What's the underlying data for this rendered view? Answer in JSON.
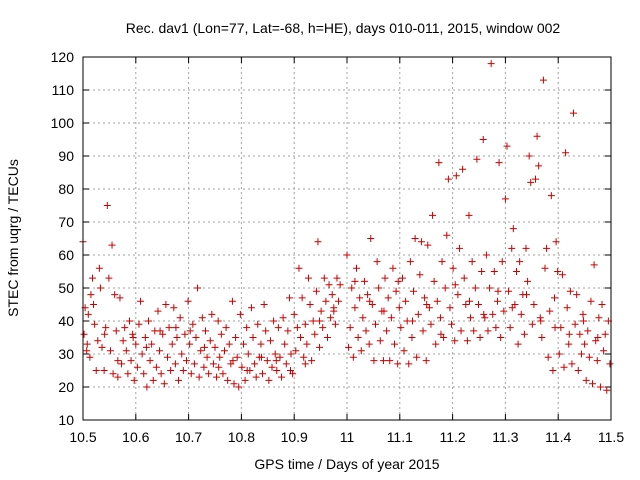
{
  "chart_data": {
    "type": "scatter",
    "title": "Rec. dav1 (Lon=77, Lat=-68, h=HE), days 010-011, 2015, window 002",
    "xlabel": "GPS time / Days of year 2015",
    "ylabel": "STEC from uqrg / TECUs",
    "xlim": [
      10.5,
      11.5
    ],
    "ylim": [
      10,
      120
    ],
    "xticks": [
      10.5,
      10.6,
      10.7,
      10.8,
      10.9,
      11,
      11.1,
      11.2,
      11.3,
      11.4,
      11.5
    ],
    "xtick_labels": [
      "10.5",
      "10.6",
      "10.7",
      "10.8",
      "10.9",
      "11",
      "11.1",
      "11.2",
      "11.3",
      "11.4",
      "11.5"
    ],
    "yticks": [
      10,
      20,
      30,
      40,
      50,
      60,
      70,
      80,
      90,
      100,
      110,
      120
    ],
    "ytick_labels": [
      "10",
      "20",
      "30",
      "40",
      "50",
      "60",
      "70",
      "80",
      "90",
      "100",
      "110",
      "120"
    ],
    "grid": true,
    "marker": "+",
    "color": "#cc0000",
    "legend": "none",
    "points": [
      [
        10.5,
        64
      ],
      [
        10.502,
        36
      ],
      [
        10.504,
        44
      ],
      [
        10.507,
        31
      ],
      [
        10.51,
        42
      ],
      [
        10.513,
        29
      ],
      [
        10.515,
        48
      ],
      [
        10.518,
        53
      ],
      [
        10.522,
        39
      ],
      [
        10.525,
        25
      ],
      [
        10.528,
        34
      ],
      [
        10.531,
        56
      ],
      [
        10.533,
        50
      ],
      [
        10.536,
        32
      ],
      [
        10.54,
        25
      ],
      [
        10.543,
        38
      ],
      [
        10.546,
        75
      ],
      [
        10.549,
        53
      ],
      [
        10.552,
        31
      ],
      [
        10.555,
        63
      ],
      [
        10.557,
        24
      ],
      [
        10.56,
        48
      ],
      [
        10.563,
        37
      ],
      [
        10.566,
        23
      ],
      [
        10.57,
        47
      ],
      [
        10.573,
        27
      ],
      [
        10.576,
        34
      ],
      [
        10.579,
        38
      ],
      [
        10.582,
        31
      ],
      [
        10.585,
        24
      ],
      [
        10.588,
        40
      ],
      [
        10.591,
        28
      ],
      [
        10.594,
        36
      ],
      [
        10.597,
        22
      ],
      [
        10.6,
        33
      ],
      [
        10.603,
        26
      ],
      [
        10.606,
        39
      ],
      [
        10.609,
        46
      ],
      [
        10.612,
        30
      ],
      [
        10.615,
        24
      ],
      [
        10.618,
        35
      ],
      [
        10.621,
        20
      ],
      [
        10.624,
        40
      ],
      [
        10.627,
        28
      ],
      [
        10.63,
        33
      ],
      [
        10.633,
        22
      ],
      [
        10.636,
        37
      ],
      [
        10.639,
        26
      ],
      [
        10.642,
        43
      ],
      [
        10.645,
        31
      ],
      [
        10.648,
        24
      ],
      [
        10.651,
        36
      ],
      [
        10.654,
        21
      ],
      [
        10.657,
        45
      ],
      [
        10.66,
        29
      ],
      [
        10.663,
        38
      ],
      [
        10.666,
        25
      ],
      [
        10.669,
        33
      ],
      [
        10.672,
        44
      ],
      [
        10.675,
        27
      ],
      [
        10.678,
        35
      ],
      [
        10.681,
        22
      ],
      [
        10.684,
        41
      ],
      [
        10.687,
        30
      ],
      [
        10.69,
        25
      ],
      [
        10.693,
        36
      ],
      [
        10.696,
        28
      ],
      [
        10.699,
        46
      ],
      [
        10.702,
        33
      ],
      [
        10.705,
        24
      ],
      [
        10.708,
        39
      ],
      [
        10.711,
        27
      ],
      [
        10.714,
        35
      ],
      [
        10.717,
        50
      ],
      [
        10.72,
        23
      ],
      [
        10.723,
        31
      ],
      [
        10.726,
        41
      ],
      [
        10.729,
        26
      ],
      [
        10.732,
        37
      ],
      [
        10.735,
        29
      ],
      [
        10.738,
        24
      ],
      [
        10.741,
        34
      ],
      [
        10.744,
        42
      ],
      [
        10.747,
        27
      ],
      [
        10.75,
        32
      ],
      [
        10.753,
        23
      ],
      [
        10.756,
        40
      ],
      [
        10.759,
        29
      ],
      [
        10.762,
        36
      ],
      [
        10.765,
        24
      ],
      [
        10.768,
        31
      ],
      [
        10.771,
        38
      ],
      [
        10.774,
        22
      ],
      [
        10.777,
        33
      ],
      [
        10.78,
        27
      ],
      [
        10.783,
        46
      ],
      [
        10.786,
        21
      ],
      [
        10.789,
        35
      ],
      [
        10.792,
        29
      ],
      [
        10.795,
        20
      ],
      [
        10.798,
        42
      ],
      [
        10.801,
        26
      ],
      [
        10.804,
        33
      ],
      [
        10.807,
        22
      ],
      [
        10.81,
        38
      ],
      [
        10.813,
        30
      ],
      [
        10.816,
        25
      ],
      [
        10.819,
        44
      ],
      [
        10.822,
        35
      ],
      [
        10.825,
        27
      ],
      [
        10.828,
        23
      ],
      [
        10.831,
        39
      ],
      [
        10.834,
        29
      ],
      [
        10.837,
        33
      ],
      [
        10.84,
        24
      ],
      [
        10.843,
        45
      ],
      [
        10.846,
        37
      ],
      [
        10.849,
        28
      ],
      [
        10.852,
        22
      ],
      [
        10.855,
        34
      ],
      [
        10.858,
        26
      ],
      [
        10.861,
        40
      ],
      [
        10.864,
        30
      ],
      [
        10.867,
        25
      ],
      [
        10.87,
        38
      ],
      [
        10.873,
        29
      ],
      [
        10.876,
        23
      ],
      [
        10.879,
        41
      ],
      [
        10.882,
        33
      ],
      [
        10.885,
        27
      ],
      [
        10.888,
        37
      ],
      [
        10.891,
        47
      ],
      [
        10.894,
        30
      ],
      [
        10.897,
        24
      ],
      [
        10.9,
        42
      ],
      [
        10.903,
        31
      ],
      [
        10.906,
        38
      ],
      [
        10.909,
        56
      ],
      [
        10.912,
        35
      ],
      [
        10.915,
        47
      ],
      [
        10.918,
        29
      ],
      [
        10.921,
        39
      ],
      [
        10.924,
        33
      ],
      [
        10.927,
        53
      ],
      [
        10.93,
        45
      ],
      [
        10.933,
        28
      ],
      [
        10.936,
        40
      ],
      [
        10.939,
        36
      ],
      [
        10.942,
        49
      ],
      [
        10.945,
        64
      ],
      [
        10.948,
        32
      ],
      [
        10.951,
        43
      ],
      [
        10.954,
        38
      ],
      [
        10.957,
        53
      ],
      [
        10.96,
        46
      ],
      [
        10.963,
        35
      ],
      [
        10.966,
        51
      ],
      [
        10.969,
        41
      ],
      [
        10.972,
        48
      ],
      [
        10.975,
        43
      ],
      [
        10.978,
        39
      ],
      [
        10.981,
        53
      ],
      [
        10.984,
        46
      ],
      [
        10.987,
        51
      ],
      [
        11.0,
        60
      ],
      [
        11.003,
        32
      ],
      [
        11.006,
        38
      ],
      [
        11.009,
        50
      ],
      [
        11.012,
        29
      ],
      [
        11.015,
        44
      ],
      [
        11.018,
        56
      ],
      [
        11.021,
        35
      ],
      [
        11.024,
        47
      ],
      [
        11.027,
        31
      ],
      [
        11.03,
        41
      ],
      [
        11.033,
        52
      ],
      [
        11.036,
        37
      ],
      [
        11.039,
        48
      ],
      [
        11.042,
        33
      ],
      [
        11.045,
        65
      ],
      [
        11.048,
        45
      ],
      [
        11.051,
        28
      ],
      [
        11.054,
        39
      ],
      [
        11.057,
        58
      ],
      [
        11.06,
        50
      ],
      [
        11.063,
        34
      ],
      [
        11.066,
        43
      ],
      [
        11.069,
        28
      ],
      [
        11.072,
        53
      ],
      [
        11.075,
        37
      ],
      [
        11.078,
        47
      ],
      [
        11.081,
        28
      ],
      [
        11.084,
        41
      ],
      [
        11.087,
        56
      ],
      [
        11.09,
        33
      ],
      [
        11.093,
        49
      ],
      [
        11.096,
        27
      ],
      [
        11.099,
        44
      ],
      [
        11.102,
        38
      ],
      [
        11.105,
        53
      ],
      [
        11.108,
        31
      ],
      [
        11.111,
        46
      ],
      [
        11.114,
        40
      ],
      [
        11.117,
        27
      ],
      [
        11.12,
        58
      ],
      [
        11.123,
        35
      ],
      [
        11.126,
        49
      ],
      [
        11.129,
        65
      ],
      [
        11.132,
        29
      ],
      [
        11.135,
        42
      ],
      [
        11.138,
        54
      ],
      [
        11.141,
        64
      ],
      [
        11.144,
        37
      ],
      [
        11.147,
        47
      ],
      [
        11.15,
        28
      ],
      [
        11.153,
        63
      ],
      [
        11.156,
        44
      ],
      [
        11.159,
        39
      ],
      [
        11.162,
        72
      ],
      [
        11.165,
        52
      ],
      [
        11.168,
        33
      ],
      [
        11.171,
        46
      ],
      [
        11.174,
        88
      ],
      [
        11.177,
        41
      ],
      [
        11.18,
        58
      ],
      [
        11.183,
        35
      ],
      [
        11.186,
        50
      ],
      [
        11.189,
        66
      ],
      [
        11.192,
        83
      ],
      [
        11.195,
        44
      ],
      [
        11.198,
        39
      ],
      [
        11.201,
        56
      ],
      [
        11.204,
        34
      ],
      [
        11.207,
        84
      ],
      [
        11.21,
        48
      ],
      [
        11.213,
        62
      ],
      [
        11.216,
        37
      ],
      [
        11.219,
        86
      ],
      [
        11.222,
        53
      ],
      [
        11.225,
        45
      ],
      [
        11.228,
        34
      ],
      [
        11.231,
        72
      ],
      [
        11.234,
        41
      ],
      [
        11.237,
        58
      ],
      [
        11.24,
        37
      ],
      [
        11.243,
        50
      ],
      [
        11.246,
        89
      ],
      [
        11.249,
        45
      ],
      [
        11.252,
        35
      ],
      [
        11.255,
        55
      ],
      [
        11.258,
        95
      ],
      [
        11.261,
        41
      ],
      [
        11.264,
        60
      ],
      [
        11.267,
        37
      ],
      [
        11.27,
        50
      ],
      [
        11.273,
        118
      ],
      [
        11.276,
        42
      ],
      [
        11.279,
        55
      ],
      [
        11.282,
        38
      ],
      [
        11.285,
        46
      ],
      [
        11.288,
        88
      ],
      [
        11.291,
        35
      ],
      [
        11.294,
        58
      ],
      [
        11.297,
        43
      ],
      [
        11.3,
        77
      ],
      [
        11.303,
        93
      ],
      [
        11.306,
        49
      ],
      [
        11.309,
        38
      ],
      [
        11.312,
        62
      ],
      [
        11.315,
        68
      ],
      [
        11.318,
        45
      ],
      [
        11.321,
        55
      ],
      [
        11.324,
        33
      ],
      [
        11.327,
        58
      ],
      [
        11.33,
        42
      ],
      [
        11.333,
        48
      ],
      [
        11.336,
        36
      ],
      [
        11.339,
        62
      ],
      [
        11.342,
        52
      ],
      [
        11.345,
        90
      ],
      [
        11.348,
        82
      ],
      [
        11.351,
        39
      ],
      [
        11.354,
        45
      ],
      [
        11.357,
        83
      ],
      [
        11.36,
        96
      ],
      [
        11.363,
        87
      ],
      [
        11.366,
        41
      ],
      [
        11.369,
        35
      ],
      [
        11.372,
        113
      ],
      [
        11.375,
        56
      ],
      [
        11.378,
        62
      ],
      [
        11.381,
        29
      ],
      [
        11.384,
        43
      ],
      [
        11.387,
        78
      ],
      [
        11.39,
        25
      ],
      [
        11.393,
        47
      ],
      [
        11.396,
        64
      ],
      [
        11.399,
        55
      ],
      [
        11.402,
        30
      ],
      [
        11.405,
        38
      ],
      [
        11.408,
        54
      ],
      [
        11.411,
        26
      ],
      [
        11.414,
        91
      ],
      [
        11.417,
        44
      ],
      [
        11.42,
        33
      ],
      [
        11.423,
        49
      ],
      [
        11.426,
        27
      ],
      [
        11.429,
        103
      ],
      [
        11.432,
        39
      ],
      [
        11.435,
        48
      ],
      [
        11.438,
        25
      ],
      [
        11.441,
        36
      ],
      [
        11.444,
        30
      ],
      [
        11.447,
        42
      ],
      [
        11.45,
        33
      ],
      [
        11.453,
        22
      ],
      [
        11.456,
        37
      ],
      [
        11.459,
        29
      ],
      [
        11.462,
        46
      ],
      [
        11.465,
        21
      ],
      [
        11.468,
        57
      ],
      [
        11.471,
        34
      ],
      [
        11.474,
        28
      ],
      [
        11.477,
        41
      ],
      [
        11.48,
        20
      ],
      [
        11.483,
        45
      ],
      [
        11.486,
        31
      ],
      [
        11.489,
        36
      ],
      [
        11.492,
        19
      ],
      [
        11.495,
        40
      ],
      [
        11.498,
        27
      ],
      [
        10.508,
        33
      ],
      [
        10.52,
        45
      ],
      [
        10.541,
        36
      ],
      [
        10.566,
        28
      ],
      [
        10.595,
        35
      ],
      [
        10.62,
        32
      ],
      [
        10.646,
        37
      ],
      [
        10.676,
        38
      ],
      [
        10.703,
        37
      ],
      [
        10.73,
        32
      ],
      [
        10.757,
        26
      ],
      [
        10.784,
        28
      ],
      [
        10.811,
        25
      ],
      [
        10.838,
        29
      ],
      [
        10.866,
        28
      ],
      [
        10.893,
        25
      ],
      [
        10.921,
        27
      ],
      [
        10.948,
        40
      ],
      [
        10.975,
        44
      ],
      [
        11.015,
        52
      ],
      [
        11.043,
        46
      ],
      [
        11.07,
        43
      ],
      [
        11.097,
        52
      ],
      [
        11.124,
        40
      ],
      [
        11.151,
        45
      ],
      [
        11.178,
        36
      ],
      [
        11.205,
        51
      ],
      [
        11.232,
        46
      ],
      [
        11.259,
        42
      ],
      [
        11.286,
        49
      ],
      [
        11.313,
        44
      ],
      [
        11.34,
        48
      ],
      [
        11.367,
        40
      ],
      [
        11.394,
        38
      ],
      [
        11.421,
        36
      ],
      [
        11.448,
        40
      ],
      [
        11.475,
        35
      ]
    ]
  }
}
